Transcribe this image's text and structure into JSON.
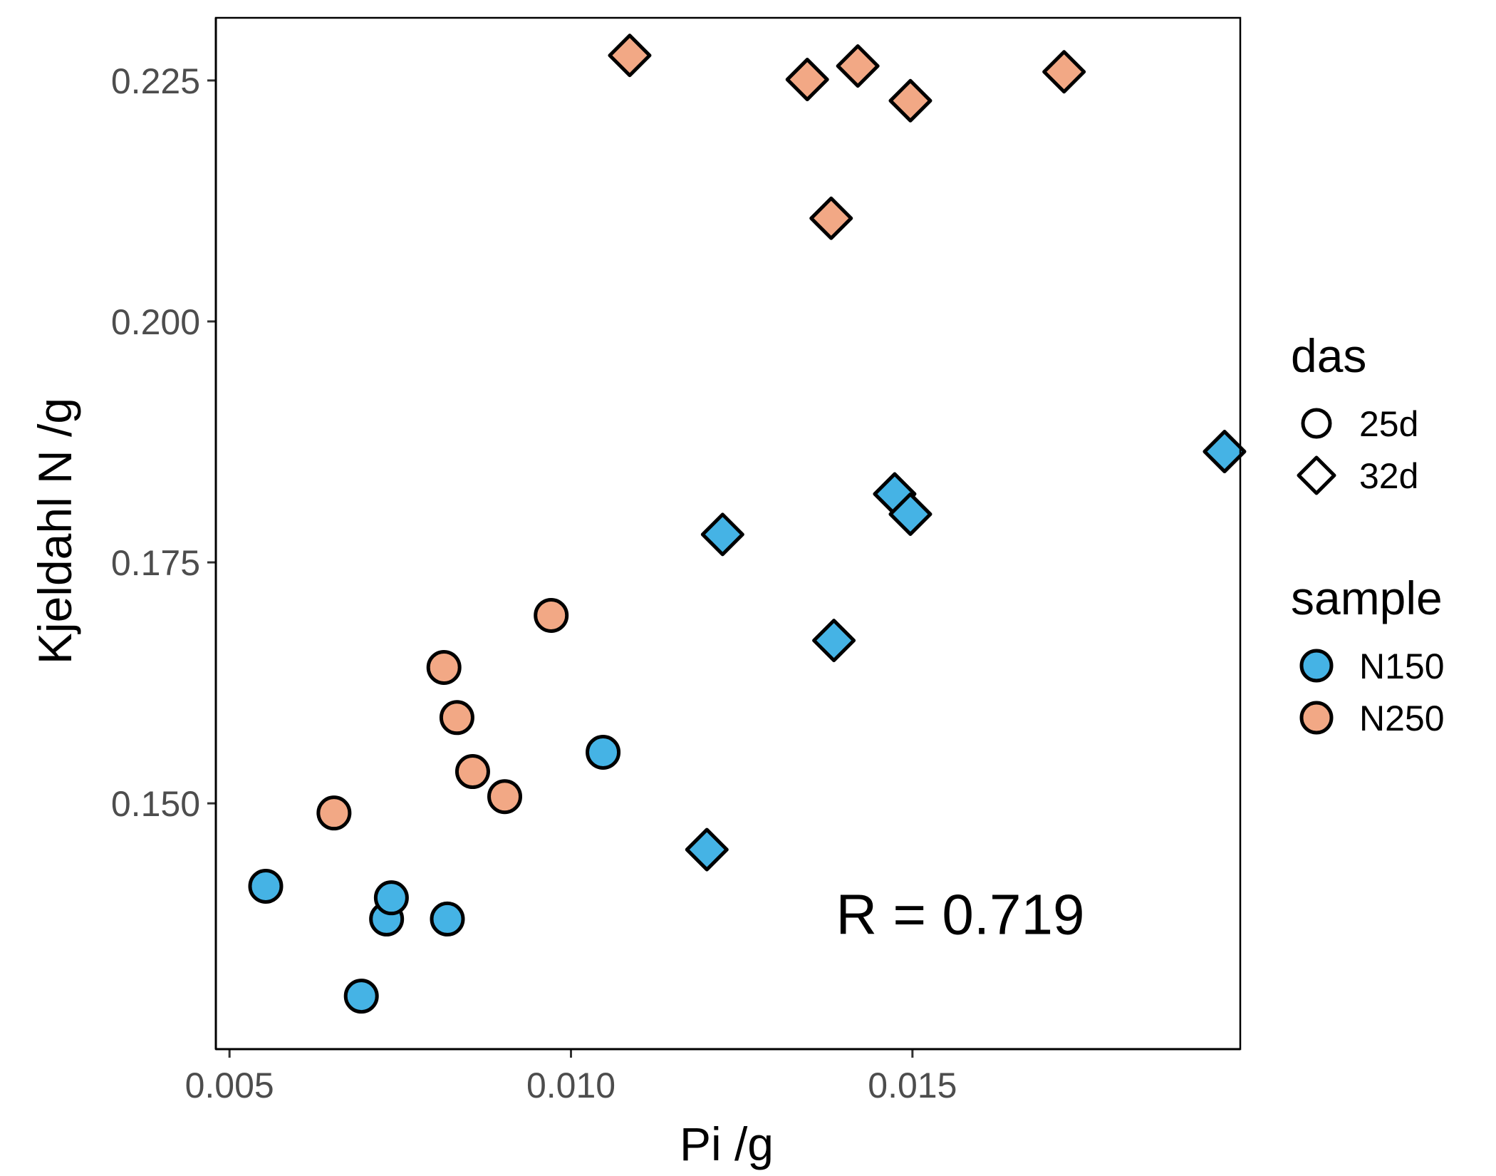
{
  "chart_data": {
    "type": "scatter",
    "xlabel": "Pi /g",
    "ylabel": "Kjeldahl N /g",
    "xlim": [
      0.0048,
      0.0198
    ],
    "ylim": [
      0.1245,
      0.2315
    ],
    "x_ticks": [
      {
        "value": 0.005,
        "label": "0.005"
      },
      {
        "value": 0.01,
        "label": "0.010"
      },
      {
        "value": 0.015,
        "label": "0.015"
      }
    ],
    "y_ticks": [
      {
        "value": 0.15,
        "label": "0.150"
      },
      {
        "value": 0.175,
        "label": "0.175"
      },
      {
        "value": 0.2,
        "label": "0.200"
      },
      {
        "value": 0.225,
        "label": "0.225"
      }
    ],
    "grid": false,
    "annotation": {
      "text": "R = 0.719",
      "x": 0.0157,
      "y": 0.1385
    },
    "legend": {
      "placement": "right",
      "groups": [
        {
          "title": "das",
          "items": [
            {
              "label": "25d",
              "shape": "circle"
            },
            {
              "label": "32d",
              "shape": "diamond"
            }
          ]
        },
        {
          "title": "sample",
          "items": [
            {
              "label": "N150",
              "color": "#45b3e5"
            },
            {
              "label": "N250",
              "color": "#f2a885"
            }
          ]
        }
      ]
    },
    "series": [
      {
        "name": "N150",
        "das": "25d",
        "shape": "circle",
        "color": "#45b3e5",
        "points": [
          [
            0.00553,
            0.1414
          ],
          [
            0.00693,
            0.13
          ],
          [
            0.0073,
            0.138
          ],
          [
            0.00737,
            0.1402
          ],
          [
            0.00819,
            0.138
          ],
          [
            0.01047,
            0.1553
          ]
        ]
      },
      {
        "name": "N250",
        "das": "25d",
        "shape": "circle",
        "color": "#f2a885",
        "points": [
          [
            0.00653,
            0.149
          ],
          [
            0.00814,
            0.1641
          ],
          [
            0.00833,
            0.1589
          ],
          [
            0.00856,
            0.1533
          ],
          [
            0.00903,
            0.1507
          ],
          [
            0.00971,
            0.1695
          ]
        ]
      },
      {
        "name": "N150",
        "das": "32d",
        "shape": "diamond",
        "color": "#45b3e5",
        "points": [
          [
            0.01199,
            0.1452
          ],
          [
            0.01222,
            0.1779
          ],
          [
            0.01385,
            0.1669
          ],
          [
            0.01474,
            0.1821
          ],
          [
            0.01497,
            0.18
          ],
          [
            0.01957,
            0.1865
          ]
        ]
      },
      {
        "name": "N250",
        "das": "32d",
        "shape": "diamond",
        "color": "#f2a885",
        "points": [
          [
            0.01086,
            0.2276
          ],
          [
            0.01346,
            0.2251
          ],
          [
            0.01381,
            0.2107
          ],
          [
            0.0142,
            0.2265
          ],
          [
            0.01497,
            0.2229
          ],
          [
            0.01722,
            0.2259
          ]
        ]
      }
    ]
  }
}
